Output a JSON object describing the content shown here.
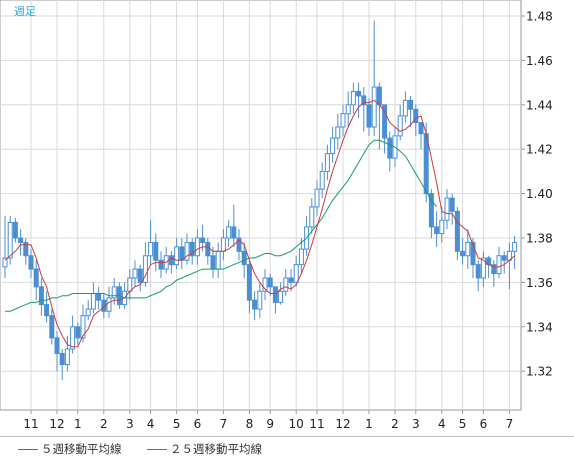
{
  "period_label": "週足",
  "colors": {
    "candle": "#4a8fd6",
    "ma5": "#cc3b3b",
    "ma25": "#159a6e",
    "grid": "#d9d9d9",
    "frame": "#9a9a9a",
    "legend_text": "#333333"
  },
  "legend": [
    {
      "label": "５週移動平均線",
      "color": "#cc3b3b"
    },
    {
      "label": "２５週移動平均線",
      "color": "#159a6e"
    }
  ],
  "chart_data": {
    "type": "candlestick",
    "ylim": [
      1.305,
      1.485
    ],
    "yticks": [
      1.32,
      1.34,
      1.36,
      1.38,
      1.4,
      1.42,
      1.44,
      1.46,
      1.48
    ],
    "ytick_labels": [
      "1.32",
      "1.34",
      "1.36",
      "1.38",
      "1.40",
      "1.42",
      "1.44",
      "1.46",
      "1.48"
    ],
    "xtick_labels": [
      {
        "label": "11",
        "week": 5
      },
      {
        "label": "12",
        "week": 10
      },
      {
        "label": "1",
        "week": 14
      },
      {
        "label": "2",
        "week": 19
      },
      {
        "label": "3",
        "week": 24
      },
      {
        "label": "4",
        "week": 28
      },
      {
        "label": "5",
        "week": 33
      },
      {
        "label": "6",
        "week": 37
      },
      {
        "label": "7",
        "week": 42
      },
      {
        "label": "8",
        "week": 47
      },
      {
        "label": "9",
        "week": 51
      },
      {
        "label": "10",
        "week": 56
      },
      {
        "label": "11",
        "week": 60
      },
      {
        "label": "12",
        "week": 65
      },
      {
        "label": "1",
        "week": 70
      },
      {
        "label": "2",
        "week": 75
      },
      {
        "label": "3",
        "week": 79
      },
      {
        "label": "4",
        "week": 84
      },
      {
        "label": "5",
        "week": 88
      },
      {
        "label": "6",
        "week": 92
      },
      {
        "label": "7",
        "week": 97
      }
    ],
    "closes": [
      1.371,
      1.387,
      1.38,
      1.378,
      1.372,
      1.366,
      1.358,
      1.35,
      1.345,
      1.335,
      1.328,
      1.323,
      1.33,
      1.34,
      1.335,
      1.345,
      1.348,
      1.355,
      1.352,
      1.347,
      1.353,
      1.358,
      1.35,
      1.356,
      1.362,
      1.366,
      1.36,
      1.372,
      1.378,
      1.37,
      1.366,
      1.372,
      1.368,
      1.376,
      1.37,
      1.378,
      1.372,
      1.38,
      1.378,
      1.372,
      1.366,
      1.374,
      1.38,
      1.385,
      1.38,
      1.374,
      1.368,
      1.352,
      1.348,
      1.356,
      1.362,
      1.358,
      1.351,
      1.356,
      1.362,
      1.36,
      1.368,
      1.375,
      1.385,
      1.394,
      1.402,
      1.41,
      1.418,
      1.425,
      1.43,
      1.436,
      1.44,
      1.446,
      1.444,
      1.44,
      1.43,
      1.448,
      1.44,
      1.425,
      1.416,
      1.426,
      1.435,
      1.442,
      1.438,
      1.432,
      1.427,
      1.4,
      1.385,
      1.382,
      1.388,
      1.398,
      1.392,
      1.374,
      1.372,
      1.378,
      1.368,
      1.362,
      1.371,
      1.368,
      1.364,
      1.372,
      1.37,
      1.374,
      1.378
    ],
    "opens": [
      1.367,
      1.371,
      1.387,
      1.38,
      1.378,
      1.372,
      1.366,
      1.358,
      1.35,
      1.345,
      1.335,
      1.328,
      1.323,
      1.33,
      1.34,
      1.335,
      1.345,
      1.348,
      1.355,
      1.352,
      1.347,
      1.353,
      1.358,
      1.35,
      1.356,
      1.362,
      1.366,
      1.36,
      1.372,
      1.378,
      1.37,
      1.366,
      1.372,
      1.368,
      1.376,
      1.37,
      1.378,
      1.372,
      1.38,
      1.378,
      1.372,
      1.366,
      1.374,
      1.38,
      1.385,
      1.38,
      1.374,
      1.368,
      1.352,
      1.348,
      1.356,
      1.362,
      1.358,
      1.351,
      1.356,
      1.362,
      1.36,
      1.368,
      1.375,
      1.385,
      1.394,
      1.402,
      1.41,
      1.418,
      1.425,
      1.43,
      1.436,
      1.44,
      1.446,
      1.444,
      1.44,
      1.43,
      1.448,
      1.44,
      1.425,
      1.416,
      1.426,
      1.435,
      1.442,
      1.438,
      1.432,
      1.427,
      1.4,
      1.385,
      1.382,
      1.388,
      1.398,
      1.392,
      1.374,
      1.372,
      1.378,
      1.368,
      1.362,
      1.371,
      1.368,
      1.364,
      1.372,
      1.37,
      1.374
    ],
    "highs": [
      1.39,
      1.39,
      1.389,
      1.384,
      1.38,
      1.375,
      1.37,
      1.362,
      1.356,
      1.348,
      1.338,
      1.33,
      1.336,
      1.345,
      1.342,
      1.35,
      1.352,
      1.36,
      1.358,
      1.355,
      1.358,
      1.362,
      1.36,
      1.36,
      1.366,
      1.37,
      1.368,
      1.378,
      1.388,
      1.382,
      1.374,
      1.376,
      1.374,
      1.38,
      1.38,
      1.382,
      1.38,
      1.384,
      1.386,
      1.38,
      1.376,
      1.378,
      1.384,
      1.388,
      1.395,
      1.384,
      1.378,
      1.37,
      1.356,
      1.36,
      1.366,
      1.364,
      1.358,
      1.36,
      1.366,
      1.366,
      1.372,
      1.38,
      1.39,
      1.398,
      1.406,
      1.414,
      1.422,
      1.43,
      1.436,
      1.44,
      1.446,
      1.45,
      1.45,
      1.448,
      1.443,
      1.478,
      1.45,
      1.44,
      1.428,
      1.43,
      1.44,
      1.446,
      1.444,
      1.44,
      1.432,
      1.432,
      1.402,
      1.392,
      1.394,
      1.402,
      1.4,
      1.394,
      1.38,
      1.384,
      1.38,
      1.37,
      1.374,
      1.372,
      1.37,
      1.376,
      1.374,
      1.378,
      1.381
    ],
    "lows": [
      1.362,
      1.368,
      1.378,
      1.372,
      1.368,
      1.362,
      1.352,
      1.345,
      1.342,
      1.332,
      1.32,
      1.316,
      1.32,
      1.328,
      1.332,
      1.333,
      1.343,
      1.346,
      1.348,
      1.344,
      1.344,
      1.35,
      1.348,
      1.348,
      1.352,
      1.358,
      1.356,
      1.358,
      1.368,
      1.365,
      1.362,
      1.364,
      1.364,
      1.366,
      1.366,
      1.368,
      1.368,
      1.368,
      1.374,
      1.368,
      1.362,
      1.362,
      1.37,
      1.376,
      1.376,
      1.37,
      1.362,
      1.346,
      1.343,
      1.344,
      1.352,
      1.354,
      1.346,
      1.35,
      1.354,
      1.356,
      1.358,
      1.364,
      1.372,
      1.382,
      1.39,
      1.398,
      1.406,
      1.414,
      1.42,
      1.426,
      1.43,
      1.436,
      1.434,
      1.428,
      1.426,
      1.426,
      1.42,
      1.418,
      1.41,
      1.412,
      1.424,
      1.432,
      1.43,
      1.426,
      1.42,
      1.396,
      1.38,
      1.376,
      1.378,
      1.384,
      1.386,
      1.37,
      1.368,
      1.366,
      1.362,
      1.356,
      1.358,
      1.362,
      1.358,
      1.362,
      1.364,
      1.357,
      1.366
    ],
    "ma5": [
      1.37,
      1.372,
      1.374,
      1.377,
      1.377,
      1.377,
      1.371,
      1.363,
      1.358,
      1.349,
      1.341,
      1.336,
      1.332,
      1.331,
      1.331,
      1.336,
      1.339,
      1.345,
      1.347,
      1.349,
      1.351,
      1.352,
      1.352,
      1.353,
      1.356,
      1.358,
      1.359,
      1.363,
      1.368,
      1.369,
      1.369,
      1.369,
      1.371,
      1.37,
      1.37,
      1.372,
      1.373,
      1.375,
      1.376,
      1.376,
      1.374,
      1.374,
      1.374,
      1.375,
      1.377,
      1.379,
      1.377,
      1.37,
      1.364,
      1.36,
      1.357,
      1.355,
      1.355,
      1.357,
      1.358,
      1.357,
      1.359,
      1.364,
      1.37,
      1.377,
      1.385,
      1.393,
      1.402,
      1.41,
      1.417,
      1.424,
      1.43,
      1.435,
      1.439,
      1.441,
      1.441,
      1.442,
      1.44,
      1.437,
      1.432,
      1.43,
      1.428,
      1.429,
      1.431,
      1.434,
      1.435,
      1.427,
      1.416,
      1.405,
      1.392,
      1.391,
      1.391,
      1.387,
      1.385,
      1.383,
      1.377,
      1.371,
      1.37,
      1.368,
      1.367,
      1.367,
      1.368,
      1.37,
      1.372
    ],
    "ma25": [
      1.347,
      1.347,
      1.348,
      1.349,
      1.35,
      1.351,
      1.351,
      1.352,
      1.352,
      1.353,
      1.353,
      1.354,
      1.354,
      1.355,
      1.355,
      1.355,
      1.355,
      1.355,
      1.355,
      1.355,
      1.354,
      1.354,
      1.354,
      1.353,
      1.353,
      1.353,
      1.353,
      1.353,
      1.354,
      1.355,
      1.356,
      1.358,
      1.359,
      1.361,
      1.362,
      1.363,
      1.364,
      1.365,
      1.366,
      1.366,
      1.366,
      1.366,
      1.366,
      1.367,
      1.368,
      1.369,
      1.37,
      1.371,
      1.371,
      1.372,
      1.373,
      1.373,
      1.372,
      1.372,
      1.373,
      1.374,
      1.376,
      1.378,
      1.38,
      1.383,
      1.386,
      1.389,
      1.393,
      1.397,
      1.4,
      1.403,
      1.406,
      1.41,
      1.414,
      1.418,
      1.422,
      1.424,
      1.424,
      1.423,
      1.422,
      1.421,
      1.419,
      1.417,
      1.413,
      1.409,
      1.405,
      1.401,
      1.397,
      1.394
    ]
  }
}
